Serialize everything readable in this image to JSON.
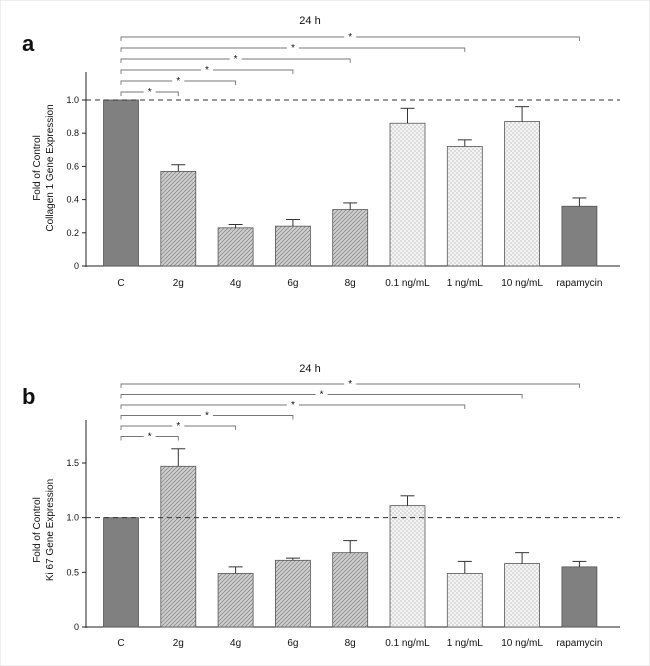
{
  "chart_data": [
    {
      "panel": "a",
      "type": "bar",
      "title": "24 h",
      "ylabel_lines": [
        "Fold of Control",
        "Collagen 1 Gene Expression"
      ],
      "xlabel": "",
      "categories": [
        "C",
        "2g",
        "4g",
        "6g",
        "8g",
        "0.1 ng/mL",
        "1 ng/mL",
        "10 ng/mL",
        "rapamycin"
      ],
      "values": [
        1.0,
        0.57,
        0.23,
        0.24,
        0.34,
        0.86,
        0.72,
        0.87,
        0.36
      ],
      "errors": [
        0.0,
        0.04,
        0.02,
        0.04,
        0.04,
        0.09,
        0.04,
        0.09,
        0.05
      ],
      "fills": [
        "dark",
        "diag",
        "diag",
        "diag",
        "diag",
        "dots",
        "dots",
        "dots",
        "dark"
      ],
      "ylim": [
        0,
        1.0
      ],
      "yticks": [
        0,
        0.2,
        0.4,
        0.6,
        0.8,
        1.0
      ],
      "ytick_labels": [
        "0",
        "0.2",
        "0.4",
        "0.6",
        "0.8",
        "1.0"
      ],
      "reference_line": 1.0,
      "significance": [
        {
          "from": 0,
          "to": 8,
          "label": "*"
        },
        {
          "from": 0,
          "to": 6,
          "label": "*"
        },
        {
          "from": 0,
          "to": 4,
          "label": "*"
        },
        {
          "from": 0,
          "to": 3,
          "label": "*"
        },
        {
          "from": 0,
          "to": 2,
          "label": "*"
        },
        {
          "from": 0,
          "to": 1,
          "label": "*"
        }
      ]
    },
    {
      "panel": "b",
      "type": "bar",
      "title": "24 h",
      "ylabel_lines": [
        "Fold of Control",
        "Ki 67  Gene Expression"
      ],
      "xlabel": "",
      "categories": [
        "C",
        "2g",
        "4g",
        "6g",
        "8g",
        "0.1 ng/mL",
        "1 ng/mL",
        "10 ng/mL",
        "rapamycin"
      ],
      "values": [
        1.0,
        1.47,
        0.49,
        0.61,
        0.68,
        1.11,
        0.49,
        0.58,
        0.55
      ],
      "errors": [
        0.0,
        0.16,
        0.06,
        0.02,
        0.11,
        0.09,
        0.11,
        0.1,
        0.05
      ],
      "fills": [
        "dark",
        "diag",
        "diag",
        "diag",
        "diag",
        "dots",
        "dots",
        "dots",
        "dark"
      ],
      "ylim": [
        0,
        1.5
      ],
      "yticks": [
        0,
        0.5,
        1.0,
        1.5
      ],
      "ytick_labels": [
        "0",
        "0.5",
        "1.0",
        "1.5"
      ],
      "reference_line": 1.0,
      "significance": [
        {
          "from": 0,
          "to": 8,
          "label": "*"
        },
        {
          "from": 0,
          "to": 7,
          "label": "*"
        },
        {
          "from": 0,
          "to": 6,
          "label": "*"
        },
        {
          "from": 0,
          "to": 3,
          "label": "*"
        },
        {
          "from": 0,
          "to": 2,
          "label": "*"
        },
        {
          "from": 0,
          "to": 1,
          "label": "*"
        }
      ]
    }
  ],
  "colors": {
    "dark_bar": "#808080",
    "diag_bar": "#c8c8c8",
    "dots_bar": "#f0f0f0",
    "axis": "#222222",
    "sig_line": "#777777"
  }
}
